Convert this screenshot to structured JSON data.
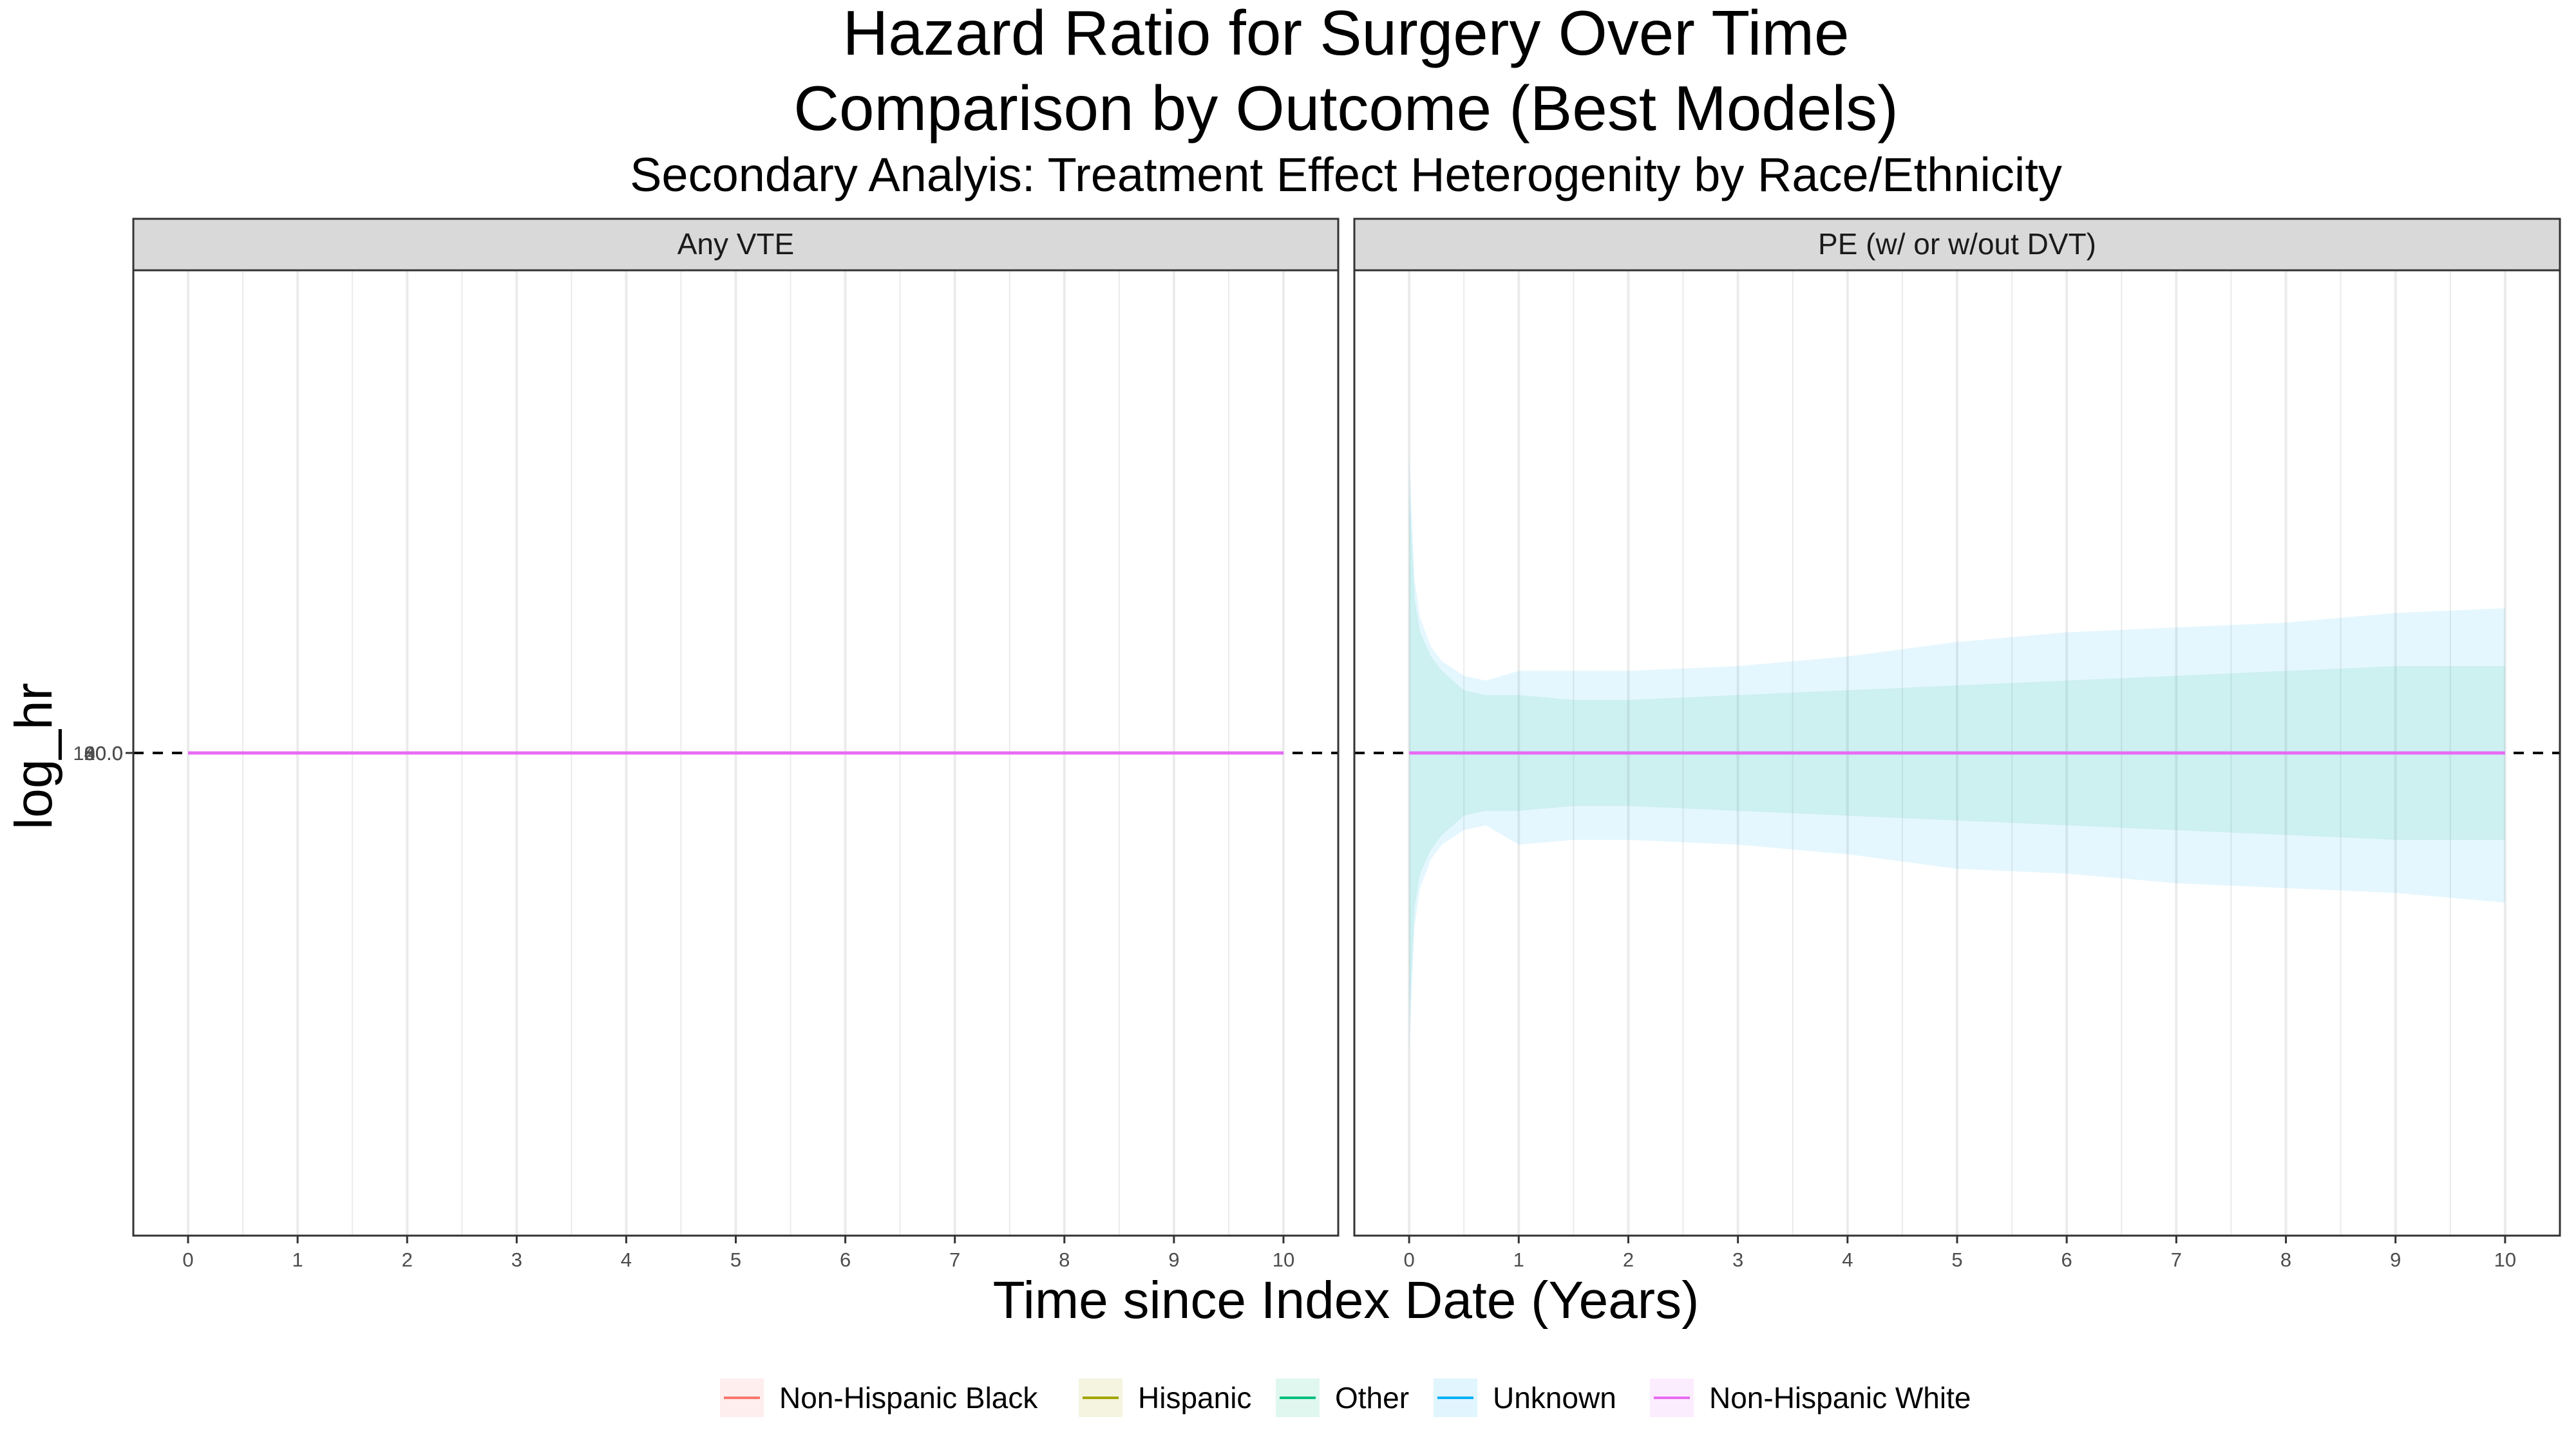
{
  "chart_data": {
    "type": "line",
    "title": "Hazard Ratio for Surgery Over Time",
    "title_line2": "Comparison by Outcome (Best Models)",
    "subtitle": "Secondary Analyis: Treatment Effect Heterogenity by Race/Ethnicity",
    "xlabel": "Time since Index Date (Years)",
    "ylabel": "log_hr",
    "xlim": [
      -0.5,
      10.5
    ],
    "ylim": [
      -1,
      1
    ],
    "x_ticks": [
      "0",
      "1",
      "2",
      "3",
      "4",
      "5",
      "6",
      "7",
      "8",
      "9",
      "10"
    ],
    "reference_line_y": 0,
    "grid": true,
    "legend_position": "bottom",
    "legend": [
      {
        "name": "Non-Hispanic Black",
        "color": "#F8766D"
      },
      {
        "name": "Hispanic",
        "color": "#A3A500"
      },
      {
        "name": "Other",
        "color": "#00BF7D"
      },
      {
        "name": "Unknown",
        "color": "#00B0F6"
      },
      {
        "name": "Non-Hispanic White",
        "color": "#E76BF3"
      }
    ],
    "panels": [
      {
        "label": "Any VTE",
        "y_tick_labels": [
          "20.0",
          "40.0",
          "60.0",
          "80.0",
          "100.0"
        ],
        "series": [
          {
            "name": "Non-Hispanic White",
            "color": "#E76BF3",
            "x": [
              0,
              10
            ],
            "y": [
              0,
              0
            ]
          }
        ],
        "bands": []
      },
      {
        "label": "PE (w/ or w/out DVT)",
        "y_tick_labels": [],
        "series": [
          {
            "name": "Non-Hispanic White",
            "color": "#E76BF3",
            "x": [
              0,
              10
            ],
            "y": [
              0,
              0
            ]
          }
        ],
        "bands": [
          {
            "name": "Unknown",
            "color": "#00B0F6",
            "opacity": 0.1,
            "x": [
              0.001,
              0.05,
              0.1,
              0.2,
              0.3,
              0.5,
              0.7,
              1,
              1.5,
              2,
              3,
              4,
              5,
              6,
              7,
              8,
              9,
              10
            ],
            "upper": [
              0.62,
              0.36,
              0.28,
              0.22,
              0.19,
              0.16,
              0.15,
              0.17,
              0.17,
              0.17,
              0.18,
              0.2,
              0.23,
              0.25,
              0.26,
              0.27,
              0.29,
              0.3
            ],
            "lower": [
              -0.62,
              -0.36,
              -0.28,
              -0.22,
              -0.19,
              -0.16,
              -0.15,
              -0.19,
              -0.18,
              -0.18,
              -0.19,
              -0.21,
              -0.24,
              -0.25,
              -0.27,
              -0.28,
              -0.29,
              -0.31
            ]
          },
          {
            "name": "Other",
            "color": "#00BF7D",
            "opacity": 0.1,
            "x": [
              0.001,
              0.05,
              0.1,
              0.2,
              0.3,
              0.5,
              0.7,
              1,
              1.5,
              2,
              3,
              4,
              5,
              6,
              7,
              8,
              9,
              10
            ],
            "upper": [
              0.55,
              0.32,
              0.25,
              0.2,
              0.17,
              0.13,
              0.12,
              0.12,
              0.11,
              0.11,
              0.12,
              0.13,
              0.14,
              0.15,
              0.16,
              0.17,
              0.18,
              0.18
            ],
            "lower": [
              -0.55,
              -0.32,
              -0.25,
              -0.2,
              -0.17,
              -0.13,
              -0.12,
              -0.12,
              -0.11,
              -0.11,
              -0.12,
              -0.13,
              -0.14,
              -0.15,
              -0.16,
              -0.17,
              -0.18,
              -0.18
            ]
          }
        ]
      }
    ]
  }
}
